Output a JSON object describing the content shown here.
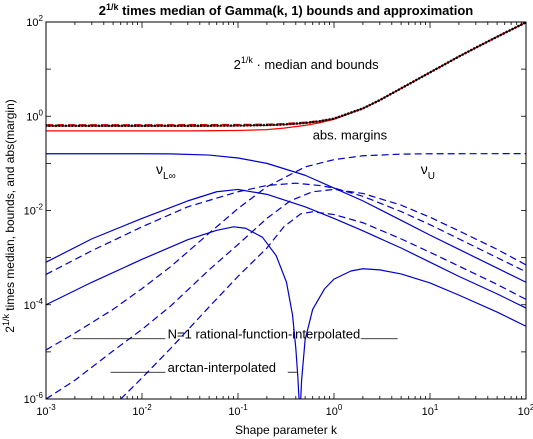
{
  "chart_data": {
    "type": "line",
    "title": {
      "base": "2",
      "sup": "1/k",
      "rest": " times median of Gamma(k, 1) bounds and approximation"
    },
    "xlabel": "Shape parameter k",
    "ylabel": {
      "base": "2",
      "sup": "1/k",
      "rest": " times median, bounds, and abs(margin)"
    },
    "xscale": "log",
    "yscale": "log",
    "xlim": [
      0.001,
      100
    ],
    "ylim": [
      1e-06,
      100
    ],
    "x_ticks": [
      {
        "value": 0.001,
        "base": "10",
        "exp": "-3"
      },
      {
        "value": 0.01,
        "base": "10",
        "exp": "-2"
      },
      {
        "value": 0.1,
        "base": "10",
        "exp": "-1"
      },
      {
        "value": 1,
        "base": "10",
        "exp": "0"
      },
      {
        "value": 10,
        "base": "10",
        "exp": "1"
      },
      {
        "value": 100,
        "base": "10",
        "exp": "2"
      }
    ],
    "y_ticks": [
      {
        "value": 1e-06,
        "base": "10",
        "exp": "-6"
      },
      {
        "value": 0.0001,
        "base": "10",
        "exp": "-4"
      },
      {
        "value": 0.01,
        "base": "10",
        "exp": "-2"
      },
      {
        "value": 1,
        "base": "10",
        "exp": "0"
      },
      {
        "value": 100,
        "base": "10",
        "exp": "2"
      }
    ],
    "grid": false,
    "colors": {
      "red": "#ff0000",
      "blue": "#0000cc",
      "black": "#000000"
    },
    "series": [
      {
        "color": "#ff0000",
        "style": "solid",
        "width": 1.2,
        "points": [
          [
            0.001,
            0.49
          ],
          [
            0.01,
            0.49
          ],
          [
            0.03,
            0.49
          ],
          [
            0.06,
            0.495
          ],
          [
            0.1,
            0.5
          ],
          [
            0.2,
            0.52
          ],
          [
            0.3,
            0.56
          ],
          [
            0.5,
            0.64
          ],
          [
            0.7,
            0.72
          ],
          [
            1,
            0.86
          ],
          [
            2,
            1.45
          ],
          [
            3,
            2.2
          ],
          [
            5,
            3.9
          ],
          [
            10,
            8.5
          ],
          [
            20,
            18.5
          ],
          [
            30,
            28.5
          ],
          [
            50,
            48.5
          ],
          [
            100,
            98.5
          ]
        ]
      },
      {
        "color": "#ff0000",
        "style": "dashed",
        "width": 1.2,
        "points": [
          [
            0.001,
            0.66
          ],
          [
            0.01,
            0.66
          ],
          [
            0.05,
            0.665
          ],
          [
            0.1,
            0.67
          ],
          [
            0.2,
            0.68
          ],
          [
            0.3,
            0.7
          ],
          [
            0.5,
            0.75
          ],
          [
            0.7,
            0.8
          ],
          [
            1,
            0.9
          ],
          [
            2,
            1.47
          ],
          [
            3,
            2.2
          ],
          [
            5,
            3.9
          ],
          [
            10,
            8.5
          ],
          [
            20,
            18.5
          ],
          [
            30,
            28.5
          ],
          [
            50,
            48.5
          ],
          [
            100,
            98.5
          ]
        ]
      },
      {
        "color": "#ff0000",
        "style": "solid",
        "width": 1.2,
        "points": [
          [
            0.001,
            0.62
          ],
          [
            0.01,
            0.62
          ],
          [
            0.05,
            0.62
          ],
          [
            0.1,
            0.625
          ],
          [
            0.2,
            0.64
          ],
          [
            0.3,
            0.66
          ],
          [
            0.5,
            0.71
          ],
          [
            0.7,
            0.77
          ],
          [
            1,
            0.88
          ],
          [
            2,
            1.46
          ],
          [
            3,
            2.2
          ],
          [
            5,
            3.9
          ],
          [
            10,
            8.5
          ],
          [
            20,
            18.5
          ],
          [
            30,
            28.5
          ],
          [
            50,
            48.5
          ],
          [
            100,
            98.5
          ]
        ]
      },
      {
        "color": "#000000",
        "style": "dotted",
        "width": 2.5,
        "points": [
          [
            0.001,
            0.63
          ],
          [
            0.01,
            0.63
          ],
          [
            0.05,
            0.63
          ],
          [
            0.1,
            0.635
          ],
          [
            0.2,
            0.65
          ],
          [
            0.3,
            0.67
          ],
          [
            0.5,
            0.72
          ],
          [
            0.7,
            0.78
          ],
          [
            1,
            0.89
          ],
          [
            2,
            1.465
          ],
          [
            3,
            2.2
          ],
          [
            5,
            3.9
          ],
          [
            10,
            8.5
          ],
          [
            20,
            18.5
          ],
          [
            30,
            28.5
          ],
          [
            50,
            48.5
          ],
          [
            100,
            98.5
          ]
        ]
      },
      {
        "color": "#0000cc",
        "style": "solid",
        "width": 1.2,
        "points": [
          [
            0.001,
            0.16
          ],
          [
            0.01,
            0.16
          ],
          [
            0.02,
            0.159
          ],
          [
            0.05,
            0.15
          ],
          [
            0.1,
            0.13
          ],
          [
            0.2,
            0.1
          ],
          [
            0.5,
            0.056
          ],
          [
            1,
            0.03
          ],
          [
            2,
            0.016
          ],
          [
            5,
            0.0062
          ],
          [
            10,
            0.003
          ],
          [
            20,
            0.0015
          ],
          [
            50,
            0.0006
          ],
          [
            100,
            0.0003
          ]
        ]
      },
      {
        "color": "#0000cc",
        "style": "dashed",
        "width": 1.2,
        "points": [
          [
            0.001,
            1.1e-05
          ],
          [
            0.002,
            2.5e-05
          ],
          [
            0.005,
            8e-05
          ],
          [
            0.01,
            0.00022
          ],
          [
            0.02,
            0.00065
          ],
          [
            0.05,
            0.0033
          ],
          [
            0.1,
            0.011
          ],
          [
            0.2,
            0.032
          ],
          [
            0.5,
            0.084
          ],
          [
            1,
            0.12
          ],
          [
            2,
            0.145
          ],
          [
            5,
            0.157
          ],
          [
            10,
            0.16
          ],
          [
            100,
            0.161
          ]
        ]
      },
      {
        "color": "#0000cc",
        "style": "solid",
        "width": 1.2,
        "points": [
          [
            0.001,
            0.0008
          ],
          [
            0.003,
            0.0025
          ],
          [
            0.01,
            0.0068
          ],
          [
            0.03,
            0.016
          ],
          [
            0.06,
            0.025
          ],
          [
            0.1,
            0.028
          ],
          [
            0.2,
            0.022
          ],
          [
            0.5,
            0.012
          ],
          [
            1,
            0.0068
          ],
          [
            2,
            0.0037
          ],
          [
            5,
            0.0016
          ],
          [
            10,
            0.0008
          ],
          [
            20,
            0.0004
          ],
          [
            50,
            0.00017
          ],
          [
            100,
            8.5e-05
          ]
        ]
      },
      {
        "color": "#0000cc",
        "style": "dashed",
        "width": 1.2,
        "points": [
          [
            0.001,
            0.00044
          ],
          [
            0.003,
            0.0014
          ],
          [
            0.01,
            0.0045
          ],
          [
            0.03,
            0.012
          ],
          [
            0.1,
            0.025
          ],
          [
            0.2,
            0.034
          ],
          [
            0.4,
            0.038
          ],
          [
            0.7,
            0.034
          ],
          [
            1,
            0.03
          ],
          [
            2,
            0.02
          ],
          [
            5,
            0.0095
          ],
          [
            10,
            0.005
          ],
          [
            20,
            0.0025
          ],
          [
            50,
            0.001
          ],
          [
            100,
            0.0005
          ]
        ]
      },
      {
        "color": "#0000cc",
        "style": "solid",
        "width": 1.2,
        "points": [
          [
            0.001,
            0.0001
          ],
          [
            0.003,
            0.0003
          ],
          [
            0.01,
            0.00092
          ],
          [
            0.03,
            0.0024
          ],
          [
            0.06,
            0.0038
          ],
          [
            0.09,
            0.0045
          ],
          [
            0.12,
            0.0042
          ],
          [
            0.18,
            0.0027
          ],
          [
            0.25,
            0.0011
          ],
          [
            0.32,
            0.0003
          ],
          [
            0.37,
            6e-05
          ],
          [
            0.4,
            1.2e-05
          ],
          [
            0.42,
            3e-06
          ],
          [
            0.43,
            1.2e-06
          ],
          [
            0.433,
            1e-06
          ]
        ]
      },
      {
        "color": "#0000cc",
        "style": "solid",
        "width": 1.2,
        "points": [
          [
            0.45,
            1e-06
          ],
          [
            0.46,
            2.5e-06
          ],
          [
            0.5,
            1.8e-05
          ],
          [
            0.6,
            8e-05
          ],
          [
            0.8,
            0.00022
          ],
          [
            1,
            0.00035
          ],
          [
            1.5,
            0.00052
          ],
          [
            2,
            0.00058
          ],
          [
            3,
            0.00055
          ],
          [
            5,
            0.00045
          ],
          [
            10,
            0.00029
          ],
          [
            20,
            0.00016
          ],
          [
            50,
            7e-05
          ],
          [
            100,
            3.5e-05
          ]
        ]
      },
      {
        "color": "#0000cc",
        "style": "dashed",
        "width": 1.2,
        "points": [
          [
            0.006,
            1e-06
          ],
          [
            0.01,
            2.8e-06
          ],
          [
            0.02,
            1.2e-05
          ],
          [
            0.05,
            9e-05
          ],
          [
            0.1,
            0.0004
          ],
          [
            0.2,
            0.0016
          ],
          [
            0.3,
            0.0045
          ],
          [
            0.45,
            0.0085
          ],
          [
            0.6,
            0.0094
          ],
          [
            1,
            0.0082
          ],
          [
            2,
            0.0055
          ],
          [
            5,
            0.0025
          ],
          [
            10,
            0.0013
          ],
          [
            20,
            0.00066
          ],
          [
            50,
            0.00027
          ],
          [
            100,
            0.00013
          ]
        ]
      },
      {
        "color": "#0000cc",
        "style": "dashed",
        "width": 1.2,
        "points": [
          [
            0.001,
            1e-06
          ],
          [
            0.002,
            2.5e-06
          ],
          [
            0.005,
            1.05e-05
          ],
          [
            0.01,
            3e-05
          ],
          [
            0.02,
            9.5e-05
          ],
          [
            0.05,
            0.00055
          ],
          [
            0.1,
            0.0019
          ],
          [
            0.2,
            0.0068
          ],
          [
            0.35,
            0.016
          ],
          [
            0.6,
            0.025
          ],
          [
            1,
            0.028
          ],
          [
            2,
            0.023
          ],
          [
            5,
            0.013
          ],
          [
            10,
            0.0072
          ],
          [
            20,
            0.0037
          ],
          [
            50,
            0.0015
          ],
          [
            100,
            0.0007
          ]
        ]
      }
    ],
    "annotations": [
      {
        "kind": "plain",
        "text": "median and bounds",
        "prefix": {
          "base": "2",
          "sup": "1/k",
          "dot": " · "
        },
        "x": 0.09,
        "y": 10,
        "anchor": "start"
      },
      {
        "kind": "plain",
        "text": "abs. margins",
        "x": 0.6,
        "y": 0.32,
        "anchor": "start"
      },
      {
        "kind": "nu",
        "base": "ν",
        "sub": "L∞",
        "x": 0.014,
        "y": 0.06,
        "anchor": "start"
      },
      {
        "kind": "nu",
        "base": "ν",
        "sub": "U",
        "x": 8,
        "y": 0.06,
        "anchor": "start"
      },
      {
        "kind": "plain",
        "text": "N=1 rational-function-interpolated",
        "x": 0.0185,
        "y": 1.9e-05,
        "anchor": "start"
      },
      {
        "kind": "plain",
        "text": "arctan-interpolated",
        "x": 0.0185,
        "y": 3.7e-06,
        "anchor": "start"
      }
    ],
    "leader_lines": [
      {
        "x1": 0.0019,
        "y1": 1.9e-05,
        "x2": 0.0175,
        "y2": 1.9e-05
      },
      {
        "x1": 1.9,
        "y1": 1.9e-05,
        "x2": 4.6,
        "y2": 1.9e-05
      },
      {
        "x1": 0.0047,
        "y1": 3.7e-06,
        "x2": 0.0175,
        "y2": 3.7e-06
      },
      {
        "x1": 0.33,
        "y1": 3.7e-06,
        "x2": 0.41,
        "y2": 3.7e-06
      }
    ]
  }
}
